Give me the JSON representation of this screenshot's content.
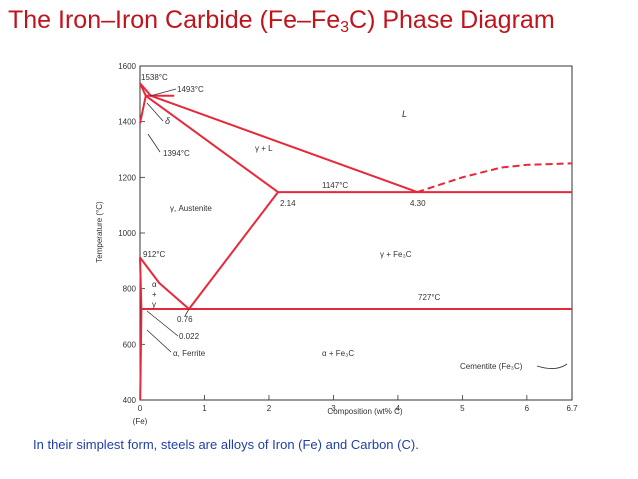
{
  "title": {
    "prefix": "The Iron–Iron Carbide (Fe–Fe",
    "subscript": "3",
    "suffix": "C) Phase Diagram"
  },
  "caption": "In their simplest form, steels are alloys of Iron (Fe) and Carbon (C).",
  "colors": {
    "title": "#c0141c",
    "phase_line": "#e8283a",
    "caption": "#1f3fa8"
  },
  "chart_data": {
    "type": "diagram",
    "xlabel": "Composition (wt% C)",
    "ylabel": "Temperature (°C)",
    "xlim": [
      0,
      6.7
    ],
    "ylim": [
      400,
      1600
    ],
    "x_ticks": [
      "0",
      "1",
      "2",
      "3",
      "4",
      "5",
      "6",
      "6.7"
    ],
    "x_tick_values": [
      0,
      1,
      2,
      3,
      4,
      5,
      6,
      6.7
    ],
    "y_ticks": [
      "400",
      "600",
      "800",
      "1000",
      "1200",
      "1400",
      "1600"
    ],
    "y_tick_values": [
      400,
      600,
      800,
      1000,
      1200,
      1400,
      1600
    ],
    "x_axis_end_label": "(Fe)",
    "grid": false,
    "phase_lines": [
      {
        "name": "liquidus-left",
        "points": [
          [
            0,
            1538
          ],
          [
            0.17,
            1493
          ],
          [
            4.3,
            1147
          ]
        ]
      },
      {
        "name": "liquidus-right",
        "style": "dashed",
        "points": [
          [
            4.3,
            1147
          ],
          [
            5.0,
            1200
          ],
          [
            5.6,
            1235
          ],
          [
            6.0,
            1245
          ],
          [
            6.7,
            1250
          ]
        ]
      },
      {
        "name": "delta-boundary-top",
        "points": [
          [
            0,
            1538
          ],
          [
            0.09,
            1493
          ]
        ]
      },
      {
        "name": "delta-boundary-bottom",
        "points": [
          [
            0,
            1394
          ],
          [
            0.09,
            1493
          ]
        ]
      },
      {
        "name": "peritectic-line",
        "points": [
          [
            0.09,
            1493
          ],
          [
            0.53,
            1493
          ]
        ]
      },
      {
        "name": "solidus-austenite",
        "points": [
          [
            0.09,
            1493
          ],
          [
            2.14,
            1147
          ]
        ]
      },
      {
        "name": "eutectic-line",
        "points": [
          [
            2.14,
            1147
          ],
          [
            6.7,
            1147
          ]
        ]
      },
      {
        "name": "acm-line",
        "points": [
          [
            2.14,
            1147
          ],
          [
            0.76,
            727
          ]
        ]
      },
      {
        "name": "a3-line",
        "points": [
          [
            0,
            912
          ],
          [
            0.3,
            820
          ],
          [
            0.76,
            727
          ]
        ]
      },
      {
        "name": "ferrite-gamma-boundary",
        "points": [
          [
            0,
            912
          ],
          [
            0.022,
            727
          ]
        ]
      },
      {
        "name": "eutectoid-line",
        "points": [
          [
            0.022,
            727
          ],
          [
            6.7,
            727
          ]
        ]
      },
      {
        "name": "ferrite-solvus",
        "points": [
          [
            0.022,
            727
          ],
          [
            0.003,
            400
          ]
        ]
      }
    ],
    "point_labels": [
      {
        "text": "1538°C",
        "x": 0,
        "y": 1538
      },
      {
        "text": "1493°C",
        "x": 0.17,
        "y": 1493
      },
      {
        "text": "1394°C",
        "x": 0,
        "y": 1394
      },
      {
        "text": "1147°C",
        "x": 2.6,
        "y": 1147
      },
      {
        "text": "2.14",
        "x": 2.14,
        "y": 1147
      },
      {
        "text": "4.30",
        "x": 4.3,
        "y": 1147
      },
      {
        "text": "912°C",
        "x": 0,
        "y": 912
      },
      {
        "text": "727°C",
        "x": 4.3,
        "y": 727
      },
      {
        "text": "0.76",
        "x": 0.76,
        "y": 727
      },
      {
        "text": "0.022",
        "x": 0.022,
        "y": 727
      }
    ],
    "region_labels": {
      "liquid": "L",
      "delta": "δ",
      "gamma_liquid": "γ + L",
      "austenite": "γ, Austenite",
      "gamma_cementite": "γ + Fe₃C",
      "alpha": "α",
      "plus": "+",
      "gamma": "γ",
      "ferrite": "α, Ferrite",
      "alpha_cementite": "α + Fe₃C",
      "cementite": "Cementite (Fe₃C)"
    }
  }
}
